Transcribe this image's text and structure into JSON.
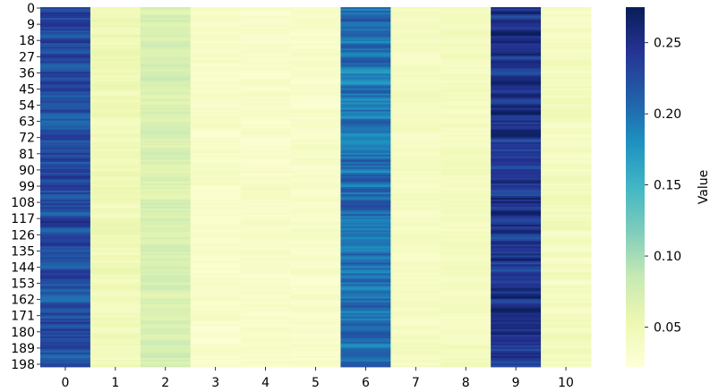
{
  "chart_data": {
    "type": "heatmap",
    "title": "",
    "xlabel": "",
    "ylabel": "",
    "n_rows": 200,
    "x_categories": [
      "0",
      "1",
      "2",
      "3",
      "4",
      "5",
      "6",
      "7",
      "8",
      "9",
      "10"
    ],
    "y_tick_labels": [
      "0",
      "9",
      "18",
      "27",
      "36",
      "45",
      "54",
      "63",
      "72",
      "81",
      "90",
      "99",
      "108",
      "117",
      "126",
      "135",
      "144",
      "153",
      "162",
      "171",
      "180",
      "189",
      "198"
    ],
    "colormap": "YlGnBu",
    "colormap_stops": [
      "#ffffd9",
      "#edf8b1",
      "#c7e9b4",
      "#7fcdbb",
      "#41b6c4",
      "#1d91c0",
      "#225ea8",
      "#253494",
      "#081d58"
    ],
    "value_range": [
      0.022,
      0.275
    ],
    "column_mean_values": [
      0.225,
      0.048,
      0.07,
      0.035,
      0.035,
      0.035,
      0.2,
      0.04,
      0.042,
      0.245,
      0.042
    ],
    "column_value_ranges": [
      [
        0.2,
        0.27
      ],
      [
        0.035,
        0.06
      ],
      [
        0.055,
        0.085
      ],
      [
        0.027,
        0.045
      ],
      [
        0.027,
        0.045
      ],
      [
        0.027,
        0.045
      ],
      [
        0.17,
        0.235
      ],
      [
        0.032,
        0.05
      ],
      [
        0.032,
        0.05
      ],
      [
        0.2,
        0.275
      ],
      [
        0.03,
        0.055
      ]
    ],
    "colorbar": {
      "label": "Value",
      "ticks": [
        0.05,
        0.1,
        0.15,
        0.2,
        0.25
      ],
      "tick_labels": [
        "0.05",
        "0.10",
        "0.15",
        "0.20",
        "0.25"
      ]
    }
  }
}
